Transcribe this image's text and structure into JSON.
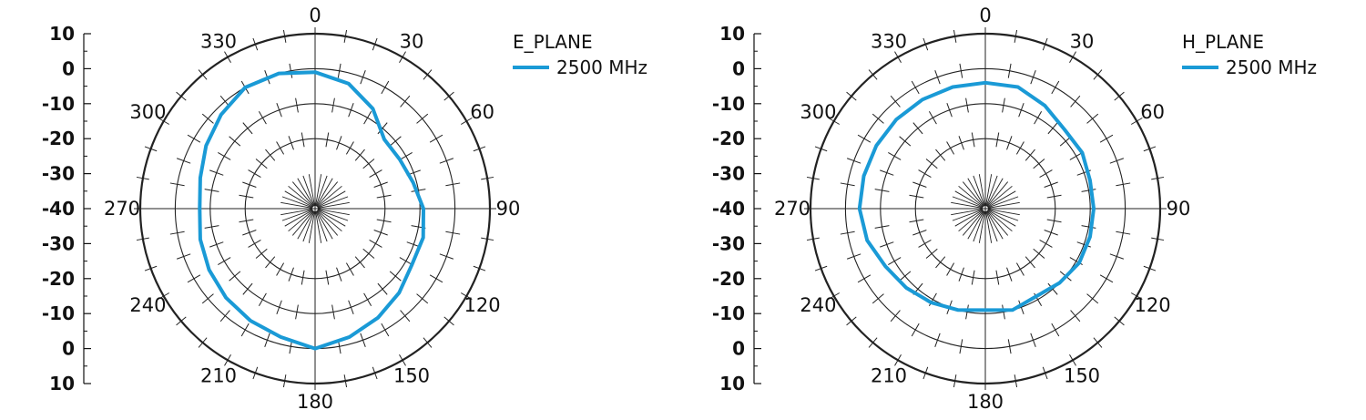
{
  "colors": {
    "series": "#1a9ad6",
    "grid": "#222222",
    "axis": "#111111"
  },
  "chart_data": [
    {
      "type": "polar-line",
      "title": "",
      "legend_title": "E_PLANE",
      "legend_position": "top-right",
      "radial_tick_labels": [
        "10",
        "0",
        "-10",
        "-20",
        "-30",
        "-40",
        "-30",
        "-20",
        "-10",
        "0",
        "10"
      ],
      "angle_tick_labels": [
        "0",
        "30",
        "60",
        "90",
        "120",
        "150",
        "180",
        "210",
        "240",
        "270",
        "300",
        "330"
      ],
      "r_range": [
        -40,
        10
      ],
      "grid_rings_db": [
        10,
        0,
        -10,
        -20
      ],
      "series": [
        {
          "name": "2500 MHz",
          "angles": [
            0,
            15,
            30,
            45,
            60,
            75,
            90,
            105,
            120,
            135,
            150,
            165,
            180,
            195,
            210,
            225,
            240,
            255,
            270,
            285,
            300,
            315,
            330,
            345
          ],
          "values": [
            -1,
            -3,
            -7,
            -12,
            -12,
            -11,
            -9,
            -8,
            -8,
            -6,
            -4,
            -2,
            0,
            -2,
            -3,
            -4,
            -5,
            -6,
            -7,
            -6,
            -4,
            -2,
            0,
            0
          ]
        }
      ]
    },
    {
      "type": "polar-line",
      "title": "",
      "legend_title": "H_PLANE",
      "legend_position": "top-right",
      "radial_tick_labels": [
        "10",
        "0",
        "-10",
        "-20",
        "-30",
        "-40",
        "-30",
        "-20",
        "-10",
        "0",
        "10"
      ],
      "angle_tick_labels": [
        "0",
        "30",
        "60",
        "90",
        "120",
        "150",
        "180",
        "210",
        "240",
        "270",
        "300",
        "330"
      ],
      "r_range": [
        -40,
        10
      ],
      "grid_rings_db": [
        10,
        0,
        -10,
        -20
      ],
      "series": [
        {
          "name": "2500 MHz",
          "angles": [
            0,
            15,
            30,
            45,
            60,
            75,
            90,
            105,
            120,
            135,
            150,
            165,
            180,
            195,
            210,
            225,
            240,
            255,
            270,
            285,
            300,
            315,
            330,
            345
          ],
          "values": [
            -4,
            -4,
            -6,
            -8,
            -8,
            -9,
            -9,
            -9,
            -9,
            -10,
            -11,
            -10,
            -11,
            -10,
            -9,
            -8,
            -7,
            -5,
            -4,
            -4,
            -4,
            -4,
            -4,
            -4
          ]
        }
      ]
    }
  ]
}
